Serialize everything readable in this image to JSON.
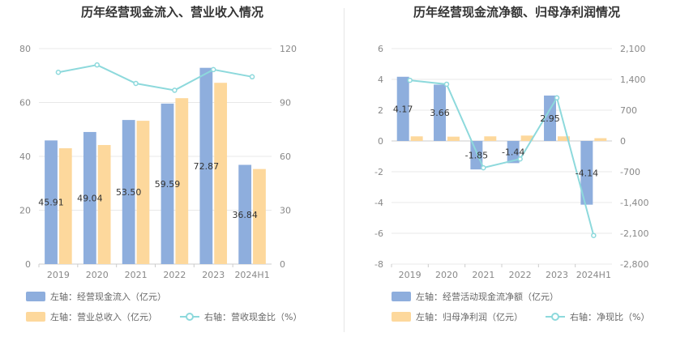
{
  "colors": {
    "bar_primary": "#8eaedd",
    "bar_secondary": "#fdd89c",
    "line": "#8dd9dc",
    "grid": "#e8e8e8",
    "axis_text": "#888888"
  },
  "chart_data": [
    {
      "type": "bar",
      "title": "历年经营现金流入、营业收入情况",
      "categories": [
        "2019",
        "2020",
        "2021",
        "2022",
        "2023",
        "2024H1"
      ],
      "left_axis": {
        "ticks": [
          "0",
          "20",
          "40",
          "60",
          "80"
        ],
        "ylim": [
          0,
          80
        ]
      },
      "right_axis": {
        "ticks": [
          "0",
          "30",
          "60",
          "90",
          "120"
        ],
        "ylim": [
          0,
          120
        ]
      },
      "grid": true,
      "legend_placement": "bottom",
      "series": [
        {
          "name": "左轴：经营现金流入（亿元）",
          "axis": "left",
          "kind": "bar",
          "color": "#8eaedd",
          "values": [
            45.91,
            49.04,
            53.5,
            59.59,
            72.87,
            36.84
          ],
          "labels": [
            "45.91",
            "49.04",
            "53.50",
            "59.59",
            "72.87",
            "36.84"
          ]
        },
        {
          "name": "左轴：营业总收入（亿元）",
          "axis": "left",
          "kind": "bar",
          "color": "#fdd89c",
          "values": [
            43.0,
            44.2,
            53.2,
            61.6,
            67.3,
            35.3
          ]
        },
        {
          "name": "右轴：营收现金比（%）",
          "axis": "right",
          "kind": "line",
          "color": "#8dd9dc",
          "values": [
            106.8,
            110.9,
            100.6,
            96.8,
            108.3,
            104.3
          ]
        }
      ]
    },
    {
      "type": "bar",
      "title": "历年经营现金流净额、归母净利润情况",
      "categories": [
        "2019",
        "2020",
        "2021",
        "2022",
        "2023",
        "2024H1"
      ],
      "left_axis": {
        "ticks": [
          "-8",
          "-6",
          "-4",
          "-2",
          "0",
          "2",
          "4",
          "6"
        ],
        "ylim": [
          -8,
          6
        ]
      },
      "right_axis": {
        "ticks": [
          "-2,800",
          "-2,100",
          "-1,400",
          "-700",
          "0",
          "700",
          "1,400",
          "2,100"
        ],
        "ylim": [
          -2800,
          2100
        ]
      },
      "grid": true,
      "legend_placement": "bottom",
      "series": [
        {
          "name": "左轴：经营活动现金流净额（亿元）",
          "axis": "left",
          "kind": "bar",
          "color": "#8eaedd",
          "values": [
            4.17,
            3.66,
            -1.85,
            -1.44,
            2.95,
            -4.14
          ],
          "labels": [
            "4.17",
            "3.66",
            "-1.85",
            "-1.44",
            "2.95",
            "-4.14"
          ]
        },
        {
          "name": "左轴：归母净利润（亿元）",
          "axis": "left",
          "kind": "bar",
          "color": "#fdd89c",
          "values": [
            0.3,
            0.28,
            0.3,
            0.35,
            0.3,
            0.18
          ]
        },
        {
          "name": "右轴：净现比（%）",
          "axis": "right",
          "kind": "line",
          "color": "#8dd9dc",
          "values": [
            1380,
            1290,
            -610,
            -410,
            980,
            -2150
          ]
        }
      ]
    }
  ]
}
